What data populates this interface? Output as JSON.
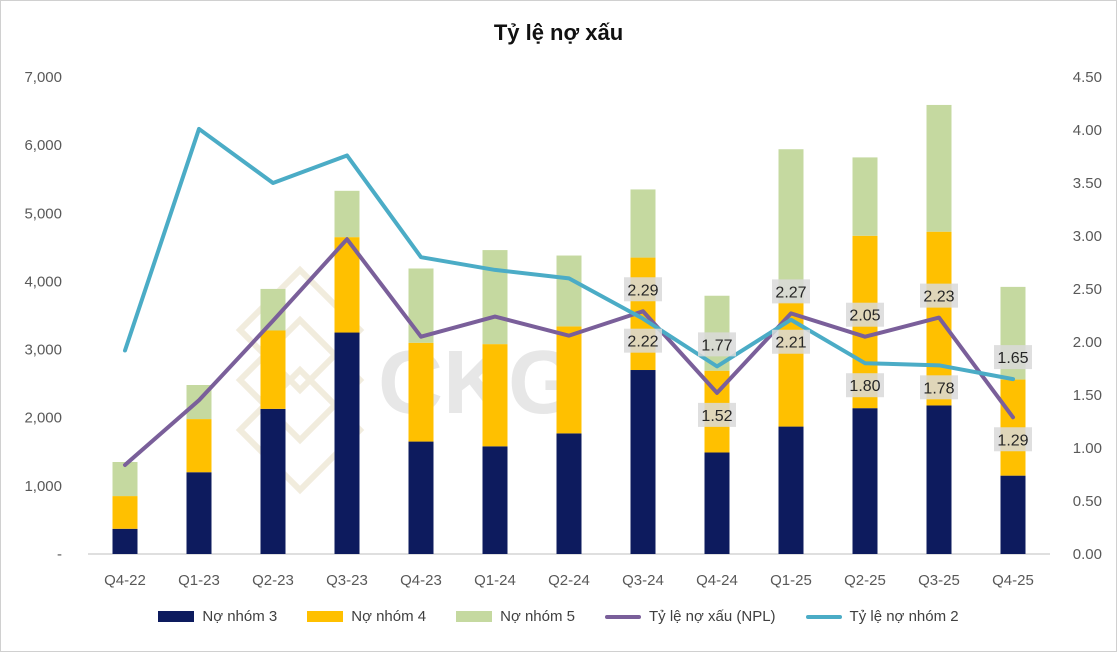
{
  "chart_data": {
    "type": "bar",
    "title": "Tỷ lệ nợ xấu",
    "categories": [
      "Q4-22",
      "Q1-23",
      "Q2-23",
      "Q3-23",
      "Q4-23",
      "Q1-24",
      "Q2-24",
      "Q3-24",
      "Q4-24",
      "Q1-25",
      "Q2-25",
      "Q3-25",
      "Q4-25"
    ],
    "left_axis": {
      "min": 0,
      "max": 7000,
      "ticks": [
        "-",
        "1,000",
        "2,000",
        "3,000",
        "4,000",
        "5,000",
        "6,000",
        "7,000"
      ]
    },
    "right_axis": {
      "min": 0,
      "max": 4.5,
      "ticks": [
        "0.00",
        "0.50",
        "1.00",
        "1.50",
        "2.00",
        "2.50",
        "3.00",
        "3.50",
        "4.00",
        "4.50"
      ]
    },
    "bar_series": [
      {
        "name": "Nợ nhóm 3",
        "color": "#0d1b5e",
        "values": [
          370,
          1200,
          2130,
          3250,
          1650,
          1580,
          1770,
          2700,
          1490,
          1870,
          2140,
          2180,
          1150
        ]
      },
      {
        "name": "Nợ nhóm 4",
        "color": "#ffc000",
        "values": [
          480,
          780,
          1150,
          1400,
          1450,
          1500,
          1570,
          1650,
          1200,
          1820,
          2530,
          2550,
          1410
        ]
      },
      {
        "name": "Nợ nhóm 5",
        "color": "#c5d9a0",
        "values": [
          500,
          500,
          610,
          680,
          1090,
          1380,
          1040,
          1000,
          1100,
          2250,
          1150,
          1860,
          1360
        ]
      }
    ],
    "line_series": [
      {
        "name": "Tỷ lệ nợ xấu (NPL)",
        "color": "#7a5f9a",
        "values": [
          0.84,
          1.45,
          2.2,
          2.97,
          2.05,
          2.24,
          2.06,
          2.29,
          1.52,
          2.27,
          2.05,
          2.23,
          1.29
        ]
      },
      {
        "name": "Tỷ lệ nợ nhóm 2",
        "color": "#4bacc6",
        "values": [
          1.92,
          4.01,
          3.5,
          3.76,
          2.8,
          2.68,
          2.6,
          2.22,
          1.77,
          2.21,
          1.8,
          1.78,
          1.65
        ]
      }
    ],
    "data_labels": [
      {
        "series": 0,
        "index": 7,
        "text": "2.29",
        "pos": "above"
      },
      {
        "series": 0,
        "index": 8,
        "text": "1.52",
        "pos": "below"
      },
      {
        "series": 0,
        "index": 9,
        "text": "2.27",
        "pos": "above"
      },
      {
        "series": 0,
        "index": 10,
        "text": "2.05",
        "pos": "above"
      },
      {
        "series": 0,
        "index": 11,
        "text": "2.23",
        "pos": "above"
      },
      {
        "series": 0,
        "index": 12,
        "text": "1.29",
        "pos": "below"
      },
      {
        "series": 1,
        "index": 7,
        "text": "2.22",
        "pos": "below"
      },
      {
        "series": 1,
        "index": 8,
        "text": "1.77",
        "pos": "above"
      },
      {
        "series": 1,
        "index": 9,
        "text": "2.21",
        "pos": "below"
      },
      {
        "series": 1,
        "index": 10,
        "text": "1.80",
        "pos": "below"
      },
      {
        "series": 1,
        "index": 11,
        "text": "1.78",
        "pos": "below"
      },
      {
        "series": 1,
        "index": 12,
        "text": "1.65",
        "pos": "above"
      }
    ],
    "watermark": "CKG",
    "grid": false,
    "legend_position": "bottom"
  }
}
